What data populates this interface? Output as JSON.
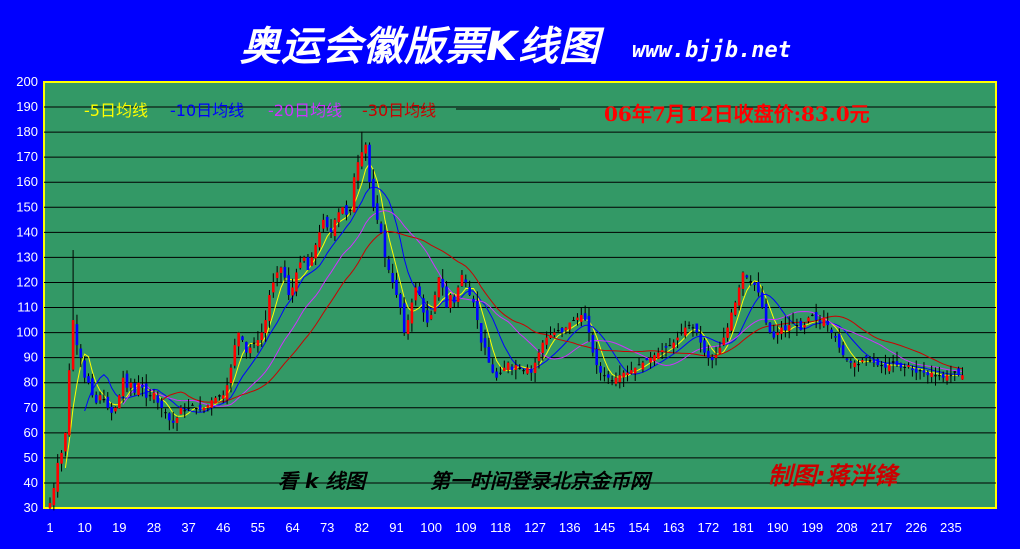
{
  "header": {
    "title": "奥运会徽版票K线图",
    "site": "www.bjjb.net"
  },
  "colors": {
    "background": "#0000ff",
    "plot_bg": "#339966",
    "frame": "#ffff00",
    "up": "#ff0000",
    "down": "#0000ff",
    "doji": "#000000",
    "ma5": "#ffff00",
    "ma10": "#0000ff",
    "ma20": "#cc33ff",
    "ma30": "#cc0000"
  },
  "chart_data": {
    "type": "candlestick",
    "title": "奥运会徽版票K线图",
    "price_note": "06年7月12日收盘价:83.0元",
    "annotations": [
      "看 k 线图",
      "第一时间登录北京金币网",
      "制图:蒋泮锋"
    ],
    "legend": [
      "-5日均线",
      "-10日均线",
      "-20日均线",
      "-30日均线"
    ],
    "ylim": [
      30,
      200
    ],
    "yticks": [
      30,
      40,
      50,
      60,
      70,
      80,
      90,
      100,
      110,
      120,
      130,
      140,
      150,
      160,
      170,
      180,
      190,
      200
    ],
    "xticks": [
      1,
      10,
      19,
      28,
      37,
      46,
      55,
      64,
      73,
      82,
      91,
      100,
      109,
      118,
      127,
      136,
      145,
      154,
      163,
      172,
      181,
      190,
      199,
      208,
      217,
      226,
      235
    ],
    "xlim": [
      1,
      238
    ],
    "grid": true,
    "close_anchors": [
      [
        1,
        32
      ],
      [
        2,
        38
      ],
      [
        3,
        48
      ],
      [
        4,
        52
      ],
      [
        5,
        60
      ],
      [
        6,
        85
      ],
      [
        7,
        105
      ],
      [
        8,
        95
      ],
      [
        9,
        90
      ],
      [
        10,
        82
      ],
      [
        11,
        80
      ],
      [
        12,
        75
      ],
      [
        13,
        72
      ],
      [
        14,
        75
      ],
      [
        15,
        73
      ],
      [
        16,
        70
      ],
      [
        17,
        68
      ],
      [
        18,
        70
      ],
      [
        19,
        75
      ],
      [
        20,
        82
      ],
      [
        21,
        78
      ],
      [
        22,
        80
      ],
      [
        23,
        76
      ],
      [
        24,
        80
      ],
      [
        25,
        78
      ],
      [
        26,
        74
      ],
      [
        27,
        75
      ],
      [
        28,
        76
      ],
      [
        29,
        72
      ],
      [
        30,
        70
      ],
      [
        31,
        68
      ],
      [
        32,
        65
      ],
      [
        33,
        64
      ],
      [
        34,
        66
      ],
      [
        35,
        70
      ],
      [
        36,
        69
      ],
      [
        37,
        70
      ],
      [
        38,
        71
      ],
      [
        39,
        70
      ],
      [
        40,
        69
      ],
      [
        41,
        70
      ],
      [
        42,
        71
      ],
      [
        43,
        73
      ],
      [
        44,
        74
      ],
      [
        45,
        75
      ],
      [
        46,
        75
      ],
      [
        47,
        79
      ],
      [
        48,
        86
      ],
      [
        49,
        95
      ],
      [
        50,
        100
      ],
      [
        51,
        97
      ],
      [
        52,
        92
      ],
      [
        53,
        94
      ],
      [
        54,
        96
      ],
      [
        55,
        97
      ],
      [
        56,
        100
      ],
      [
        57,
        105
      ],
      [
        58,
        115
      ],
      [
        59,
        120
      ],
      [
        60,
        124
      ],
      [
        61,
        126
      ],
      [
        62,
        122
      ],
      [
        63,
        115
      ],
      [
        64,
        118
      ],
      [
        65,
        124
      ],
      [
        66,
        128
      ],
      [
        67,
        130
      ],
      [
        68,
        125
      ],
      [
        69,
        130
      ],
      [
        70,
        135
      ],
      [
        71,
        140
      ],
      [
        72,
        145
      ],
      [
        73,
        142
      ],
      [
        74,
        140
      ],
      [
        75,
        145
      ],
      [
        76,
        148
      ],
      [
        77,
        150
      ],
      [
        78,
        147
      ],
      [
        79,
        149
      ],
      [
        80,
        162
      ],
      [
        81,
        168
      ],
      [
        82,
        172
      ],
      [
        83,
        175
      ],
      [
        84,
        160
      ],
      [
        85,
        150
      ],
      [
        86,
        145
      ],
      [
        87,
        140
      ],
      [
        88,
        130
      ],
      [
        89,
        125
      ],
      [
        90,
        120
      ],
      [
        91,
        115
      ],
      [
        92,
        110
      ],
      [
        93,
        100
      ],
      [
        94,
        105
      ],
      [
        95,
        112
      ],
      [
        96,
        118
      ],
      [
        97,
        115
      ],
      [
        98,
        108
      ],
      [
        99,
        104
      ],
      [
        100,
        107
      ],
      [
        101,
        115
      ],
      [
        102,
        122
      ],
      [
        103,
        118
      ],
      [
        104,
        110
      ],
      [
        105,
        115
      ],
      [
        106,
        112
      ],
      [
        107,
        118
      ],
      [
        108,
        123
      ],
      [
        109,
        120
      ],
      [
        110,
        115
      ],
      [
        111,
        112
      ],
      [
        112,
        105
      ],
      [
        113,
        96
      ],
      [
        114,
        94
      ],
      [
        115,
        88
      ],
      [
        116,
        84
      ],
      [
        117,
        82
      ],
      [
        118,
        84
      ],
      [
        119,
        86
      ],
      [
        120,
        88
      ],
      [
        121,
        85
      ],
      [
        122,
        87
      ],
      [
        123,
        86
      ],
      [
        124,
        85
      ],
      [
        125,
        86
      ],
      [
        126,
        84
      ],
      [
        127,
        88
      ],
      [
        128,
        92
      ],
      [
        129,
        96
      ],
      [
        130,
        98
      ],
      [
        131,
        99
      ],
      [
        132,
        100
      ],
      [
        133,
        101
      ],
      [
        134,
        100
      ],
      [
        135,
        102
      ],
      [
        136,
        104
      ],
      [
        137,
        105
      ],
      [
        138,
        106
      ],
      [
        139,
        107
      ],
      [
        140,
        105
      ],
      [
        141,
        100
      ],
      [
        142,
        92
      ],
      [
        143,
        87
      ],
      [
        144,
        84
      ],
      [
        145,
        83
      ],
      [
        146,
        82
      ],
      [
        147,
        81
      ],
      [
        148,
        82
      ],
      [
        149,
        83
      ],
      [
        150,
        84
      ],
      [
        151,
        84
      ],
      [
        152,
        85
      ],
      [
        153,
        86
      ],
      [
        154,
        87
      ],
      [
        155,
        88
      ],
      [
        156,
        89
      ],
      [
        157,
        90
      ],
      [
        158,
        91
      ],
      [
        159,
        92
      ],
      [
        160,
        93
      ],
      [
        161,
        94
      ],
      [
        162,
        95
      ],
      [
        163,
        96
      ],
      [
        164,
        98
      ],
      [
        165,
        100
      ],
      [
        166,
        102
      ],
      [
        167,
        103
      ],
      [
        168,
        102
      ],
      [
        169,
        100
      ],
      [
        170,
        96
      ],
      [
        171,
        92
      ],
      [
        172,
        90
      ],
      [
        173,
        89
      ],
      [
        174,
        91
      ],
      [
        175,
        94
      ],
      [
        176,
        98
      ],
      [
        177,
        102
      ],
      [
        178,
        108
      ],
      [
        179,
        112
      ],
      [
        180,
        118
      ],
      [
        181,
        124
      ],
      [
        182,
        122
      ],
      [
        183,
        120
      ],
      [
        184,
        119
      ],
      [
        185,
        116
      ],
      [
        186,
        110
      ],
      [
        187,
        104
      ],
      [
        188,
        100
      ],
      [
        189,
        98
      ],
      [
        190,
        100
      ],
      [
        191,
        102
      ],
      [
        192,
        101
      ],
      [
        193,
        103
      ],
      [
        194,
        104
      ],
      [
        195,
        103
      ],
      [
        196,
        101
      ],
      [
        197,
        103
      ],
      [
        198,
        106
      ],
      [
        199,
        107
      ],
      [
        200,
        105
      ],
      [
        201,
        104
      ],
      [
        202,
        106
      ],
      [
        203,
        103
      ],
      [
        204,
        100
      ],
      [
        205,
        98
      ],
      [
        206,
        94
      ],
      [
        207,
        91
      ],
      [
        208,
        89
      ],
      [
        209,
        88
      ],
      [
        210,
        88
      ],
      [
        211,
        87
      ],
      [
        212,
        89
      ],
      [
        213,
        90
      ],
      [
        214,
        89
      ],
      [
        215,
        88
      ],
      [
        216,
        87
      ],
      [
        217,
        87
      ],
      [
        218,
        86
      ],
      [
        219,
        87
      ],
      [
        220,
        88
      ],
      [
        221,
        87
      ],
      [
        222,
        86
      ],
      [
        223,
        86
      ],
      [
        224,
        87
      ],
      [
        225,
        85
      ],
      [
        226,
        84
      ],
      [
        227,
        85
      ],
      [
        228,
        84
      ],
      [
        229,
        83
      ],
      [
        230,
        84
      ],
      [
        231,
        83
      ],
      [
        232,
        83
      ],
      [
        233,
        82
      ],
      [
        234,
        83
      ],
      [
        235,
        83
      ],
      [
        236,
        84
      ],
      [
        237,
        83
      ],
      [
        238,
        83
      ]
    ]
  }
}
